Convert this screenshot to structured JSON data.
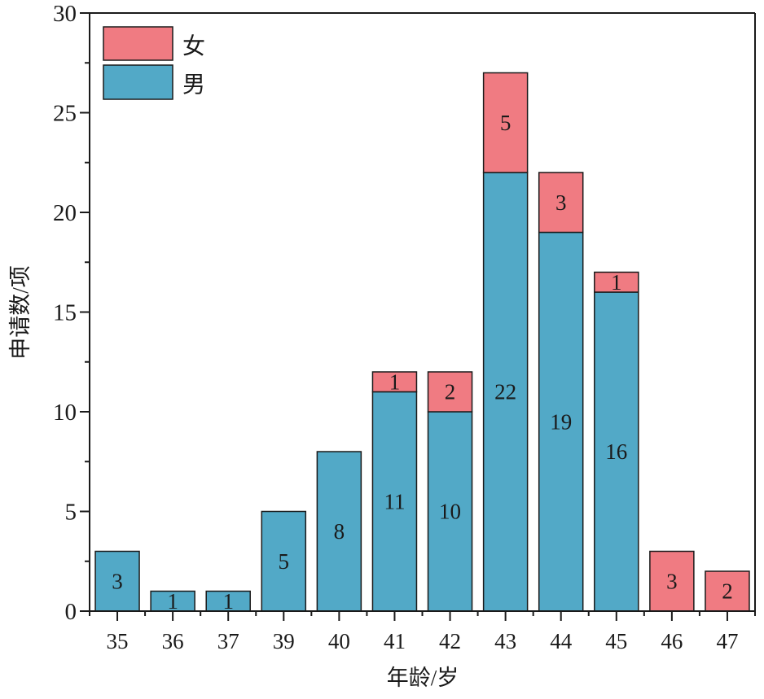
{
  "chart_data": {
    "type": "bar",
    "stacked": true,
    "title": "",
    "xlabel": "年龄/岁",
    "ylabel": "申请数/项",
    "ylim": [
      0,
      30
    ],
    "yticks": [
      "0",
      "5",
      "10",
      "15",
      "20",
      "25",
      "30"
    ],
    "categories": [
      "35",
      "36",
      "37",
      "39",
      "40",
      "41",
      "42",
      "43",
      "44",
      "45",
      "46",
      "47"
    ],
    "series": [
      {
        "name": "男",
        "color": "#52A9C7",
        "values": [
          3,
          1,
          1,
          5,
          8,
          11,
          10,
          22,
          19,
          16,
          0,
          0
        ]
      },
      {
        "name": "女",
        "color": "#F07B82",
        "values": [
          0,
          0,
          0,
          0,
          0,
          1,
          2,
          5,
          3,
          1,
          3,
          2
        ]
      }
    ],
    "legend": {
      "placement": "top-left",
      "entries": [
        "女",
        "男"
      ]
    },
    "grid": false
  }
}
